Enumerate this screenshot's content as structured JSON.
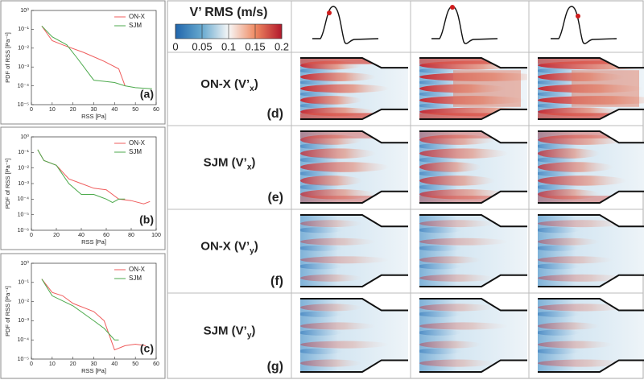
{
  "chart_data": [
    {
      "type": "line",
      "label": "(a)",
      "xlabel": "RSS [Pa]",
      "ylabel": "PDF of RSS [Pa⁻¹]",
      "log_y": true,
      "legend": "upper right",
      "xlim": [
        0,
        60
      ],
      "xticks": [
        0,
        10,
        20,
        30,
        40,
        50,
        60
      ],
      "ylim": [
        1e-05,
        1
      ],
      "yticks": [
        {
          "value": 1,
          "label": "10⁰"
        },
        {
          "value": 0.1,
          "label": "10⁻¹"
        },
        {
          "value": 0.01,
          "label": "10⁻²"
        },
        {
          "value": 0.001,
          "label": "10⁻³"
        },
        {
          "value": 0.0001,
          "label": "10⁻⁴"
        },
        {
          "value": 1e-05,
          "label": "10⁻⁵"
        }
      ],
      "series": [
        {
          "name": "ON-X",
          "color": "#ef5d5d",
          "x": [
            5,
            10,
            15,
            25,
            35,
            42,
            45
          ],
          "values": [
            0.15,
            0.025,
            0.015,
            0.006,
            0.002,
            0.0008,
            0.0001
          ]
        },
        {
          "name": "SJM",
          "color": "#4daa4d",
          "x": [
            5,
            10,
            17,
            22,
            30,
            40,
            45,
            50,
            58
          ],
          "values": [
            0.15,
            0.04,
            0.015,
            0.003,
            0.0002,
            0.00015,
            0.0001,
            8e-05,
            7e-05
          ]
        }
      ]
    },
    {
      "type": "line",
      "label": "(b)",
      "xlabel": "RSS [Pa]",
      "ylabel": "PDF of RSS [Pa⁻¹]",
      "log_y": true,
      "legend": "upper right",
      "xlim": [
        0,
        100
      ],
      "xticks": [
        0,
        20,
        40,
        60,
        80,
        100
      ],
      "ylim": [
        1e-06,
        1
      ],
      "yticks": [
        {
          "value": 1,
          "label": "10⁰"
        },
        {
          "value": 0.1,
          "label": "10⁻¹"
        },
        {
          "value": 0.01,
          "label": "10⁻²"
        },
        {
          "value": 0.001,
          "label": "10⁻³"
        },
        {
          "value": 0.0001,
          "label": "10⁻⁴"
        },
        {
          "value": 1e-05,
          "label": "10⁻⁵"
        },
        {
          "value": 1e-06,
          "label": "10⁻⁶"
        }
      ],
      "series": [
        {
          "name": "ON-X",
          "color": "#ef5d5d",
          "x": [
            5,
            10,
            20,
            30,
            40,
            50,
            60,
            70,
            80,
            90,
            95
          ],
          "values": [
            0.15,
            0.03,
            0.015,
            0.002,
            0.001,
            0.0005,
            0.0004,
            0.0001,
            8e-05,
            5e-05,
            7e-05
          ]
        },
        {
          "name": "SJM",
          "color": "#4daa4d",
          "x": [
            5,
            10,
            20,
            30,
            40,
            50,
            60,
            65,
            70,
            75
          ],
          "values": [
            0.15,
            0.03,
            0.015,
            0.001,
            0.0002,
            0.0002,
            0.0001,
            6e-05,
            0.0001,
            0.0001
          ]
        }
      ]
    },
    {
      "type": "line",
      "label": "(c)",
      "xlabel": "RSS [Pa]",
      "ylabel": "PDF of RSS [Pa⁻¹]",
      "log_y": true,
      "legend": "upper right",
      "xlim": [
        0,
        60
      ],
      "xticks": [
        0,
        10,
        20,
        30,
        40,
        50,
        60
      ],
      "ylim": [
        1e-05,
        1
      ],
      "yticks": [
        {
          "value": 1,
          "label": "10⁰"
        },
        {
          "value": 0.1,
          "label": "10⁻¹"
        },
        {
          "value": 0.01,
          "label": "10⁻²"
        },
        {
          "value": 0.001,
          "label": "10⁻³"
        },
        {
          "value": 0.0001,
          "label": "10⁻⁴"
        },
        {
          "value": 1e-05,
          "label": "10⁻⁵"
        }
      ],
      "series": [
        {
          "name": "ON-X",
          "color": "#ef5d5d",
          "x": [
            5,
            10,
            15,
            20,
            30,
            35,
            40,
            45,
            50,
            55
          ],
          "values": [
            0.15,
            0.03,
            0.02,
            0.008,
            0.003,
            0.001,
            3e-05,
            5e-05,
            6e-05,
            5e-05
          ]
        },
        {
          "name": "SJM",
          "color": "#4daa4d",
          "x": [
            5,
            10,
            20,
            30,
            35,
            40,
            42
          ],
          "values": [
            0.15,
            0.02,
            0.006,
            0.001,
            0.0004,
            0.0001,
            0.0001
          ]
        }
      ]
    }
  ],
  "colorbar": {
    "title": "V’ RMS (m/s)",
    "lim": [
      0,
      0.2
    ],
    "ticks": [
      0,
      0.05,
      0.1,
      0.15,
      0.2
    ]
  },
  "rows": [
    {
      "label": [
        "ON-X (V’",
        "x",
        ")"
      ],
      "panel": "(d)"
    },
    {
      "label": [
        "SJM (V’",
        "x",
        ")"
      ],
      "panel": "(e)"
    },
    {
      "label": [
        "ON-X (V’",
        "y",
        ")"
      ],
      "panel": "(f)"
    },
    {
      "label": [
        "SJM (V’",
        "y",
        ")"
      ],
      "panel": "(g)"
    }
  ]
}
